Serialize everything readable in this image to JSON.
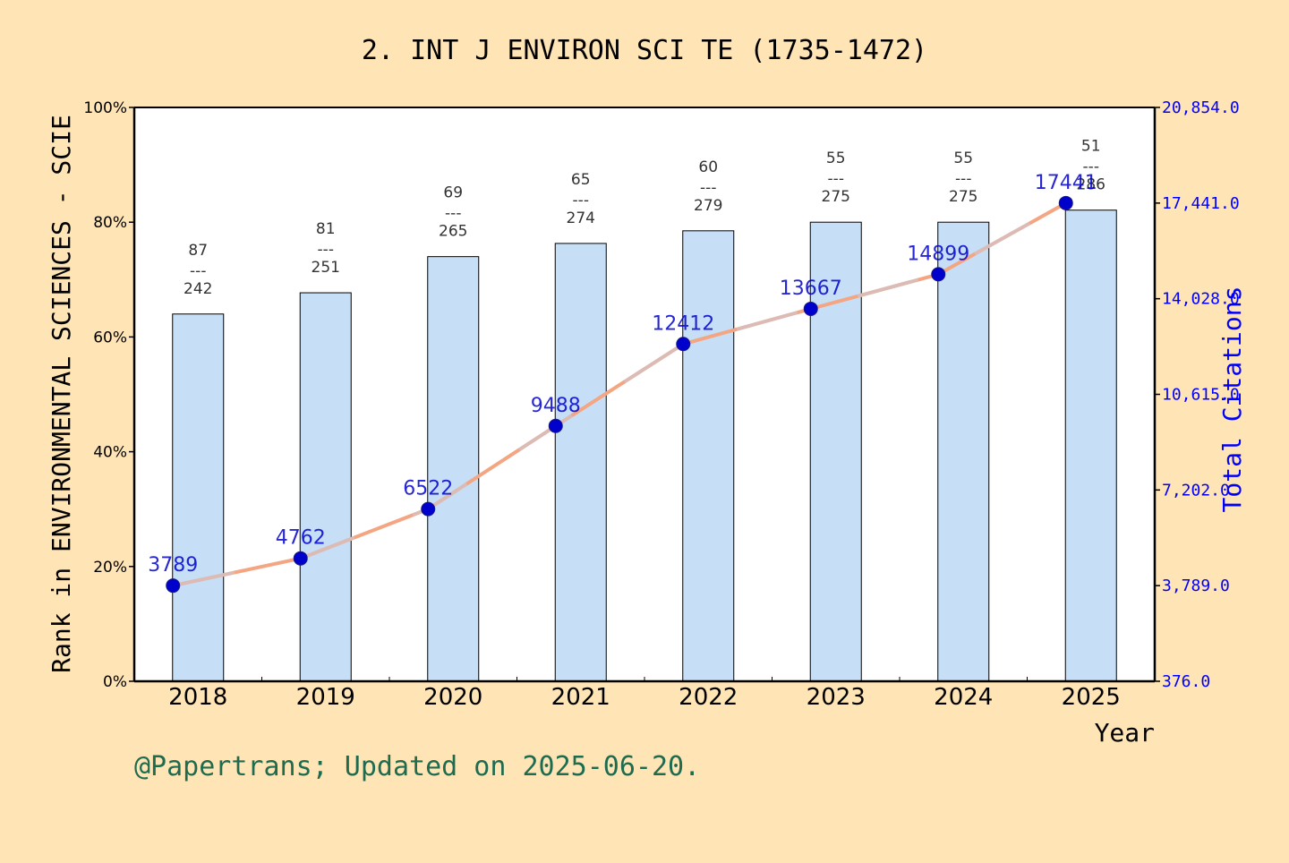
{
  "chart_data": {
    "type": "bar",
    "title": "2. INT J ENVIRON SCI TE (1735-1472)",
    "xlabel": "Year",
    "ylabel": "Rank in ENVIRONMENTAL SCIENCES - SCIE",
    "y2label": "Total Citations",
    "categories": [
      "2018",
      "2019",
      "2020",
      "2021",
      "2022",
      "2023",
      "2024",
      "2025"
    ],
    "ylim": [
      0,
      100
    ],
    "y_ticks": [
      "0%",
      "20%",
      "40%",
      "60%",
      "80%",
      "100%"
    ],
    "y2lim": [
      376.0,
      20854.0
    ],
    "y2_ticks": [
      "376.0",
      "3,789.0",
      "7,202.0",
      "10,615.0",
      "14,028.0",
      "17,441.0",
      "20,854.0"
    ],
    "series": [
      {
        "kind": "bar",
        "axis": "left",
        "values": [
          64.0,
          67.7,
          74.0,
          76.3,
          78.5,
          80.0,
          80.0,
          82.1
        ],
        "rank": [
          87,
          81,
          69,
          65,
          60,
          55,
          55,
          51
        ],
        "total": [
          242,
          251,
          265,
          274,
          279,
          275,
          275,
          286
        ],
        "color": "#C6DFF7"
      },
      {
        "kind": "line",
        "axis": "right",
        "values": [
          3789,
          4762,
          6522,
          9488,
          12412,
          13667,
          14899,
          17441
        ],
        "labels": [
          "3789",
          "4762",
          "6522",
          "9488",
          "12412",
          "13667",
          "14899",
          "17441"
        ],
        "color": "#F4A582",
        "marker_color": "#0000CD"
      }
    ],
    "grid": false,
    "legend": "none"
  },
  "footer": "@Papertrans; Updated on 2025-06-20."
}
